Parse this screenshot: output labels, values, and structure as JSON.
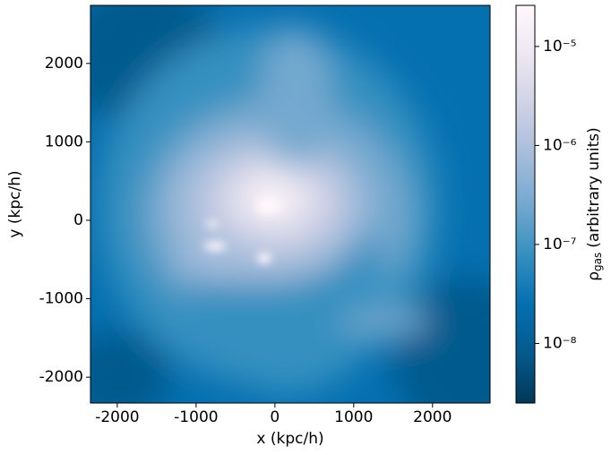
{
  "chart_data": {
    "type": "image",
    "xlabel": "x (kpc/h)",
    "ylabel": "y (kpc/h)",
    "xlim": [
      -2340,
      2730
    ],
    "ylim": [
      -2330,
      2740
    ],
    "xticks": [
      -2000,
      -1000,
      0,
      1000,
      2000
    ],
    "yticks": [
      -2000,
      -1000,
      0,
      1000,
      2000
    ],
    "colormap": [
      "#023858",
      "#045a8d",
      "#0570b0",
      "#3690c0",
      "#74a9cf",
      "#a6bddb",
      "#d0d1e6",
      "#ece7f2",
      "#fff7fb"
    ],
    "colorbar": {
      "scale": "log",
      "lim": [
        2.5e-09,
        2.6e-05
      ],
      "label": {
        "symbol": "ρ",
        "subscript": "gas",
        "text": "(arbitrary units)"
      },
      "ticks": [
        {
          "value": 1e-08,
          "label": "10⁻⁸"
        },
        {
          "value": 1e-07,
          "label": "10⁻⁷"
        },
        {
          "value": 1e-06,
          "label": "10⁻⁶"
        },
        {
          "value": 1e-05,
          "label": "10⁻⁵"
        }
      ]
    }
  }
}
